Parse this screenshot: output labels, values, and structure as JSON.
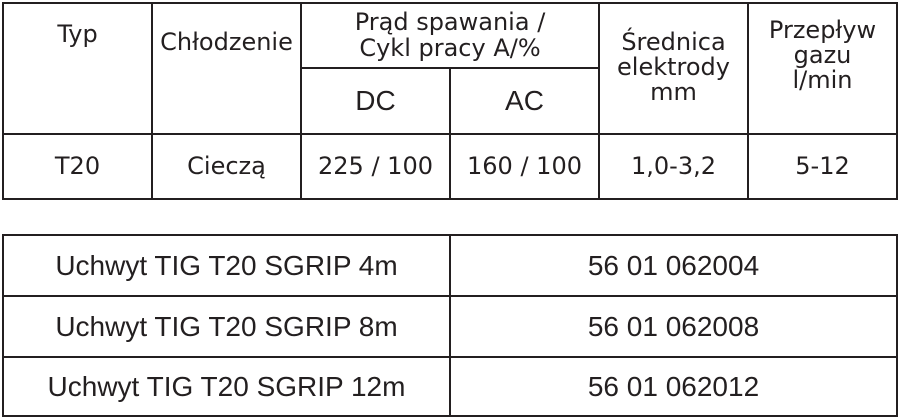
{
  "spec_table": {
    "headers": {
      "type": "Typ",
      "cooling": "Chłodzenie",
      "current_line1": "Prąd spawania /",
      "current_line2": "Cykl pracy A/%",
      "dc": "DC",
      "ac": "AC",
      "electrode_line1": "Średnica",
      "electrode_line2": "elektrody",
      "electrode_line3": "mm",
      "gas_line1": "Przepływ",
      "gas_line2": "gazu",
      "gas_line3": "l/min"
    },
    "row": {
      "type": "T20",
      "cooling": "Cieczą",
      "dc": "225 / 100",
      "ac": "160 / 100",
      "electrode": "1,0-3,2",
      "gas": "5-12"
    }
  },
  "product_table": [
    {
      "name": "Uchwyt TIG T20 SGRIP 4m",
      "code": "56 01 062004"
    },
    {
      "name": "Uchwyt TIG T20 SGRIP 8m",
      "code": "56 01 062008"
    },
    {
      "name": "Uchwyt TIG T20 SGRIP 12m",
      "code": "56 01 062012"
    }
  ]
}
